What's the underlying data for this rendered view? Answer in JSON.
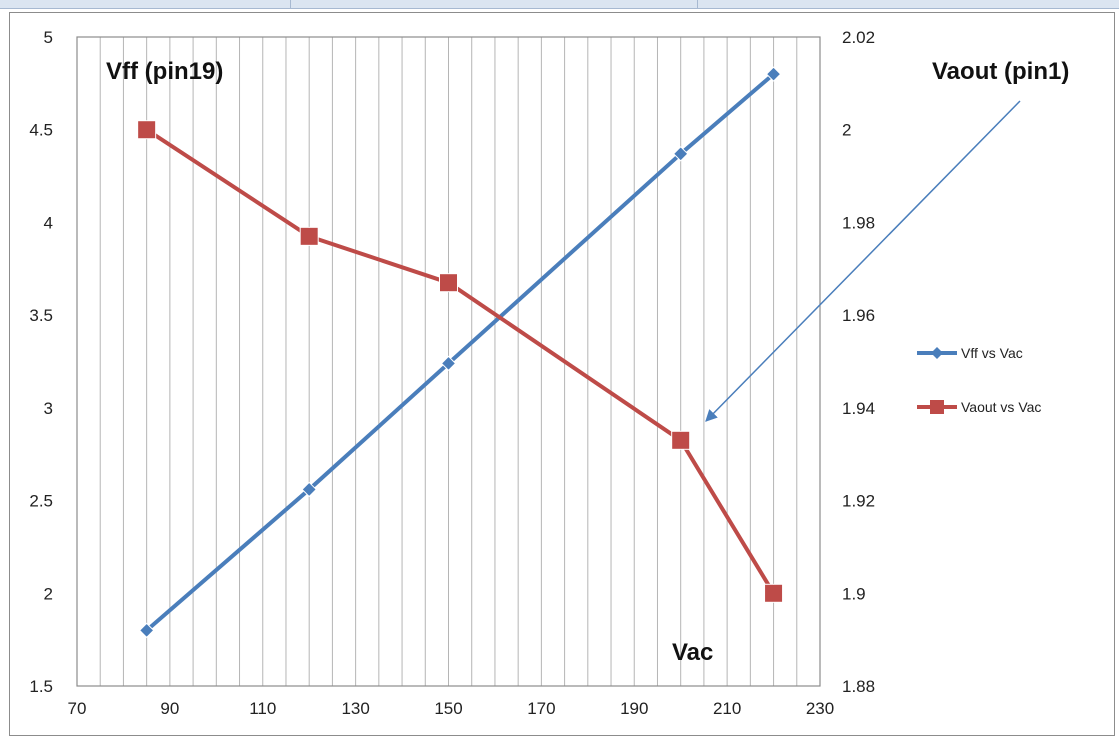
{
  "chart_data": {
    "type": "line",
    "x": [
      85,
      120,
      150,
      200,
      220
    ],
    "xlim": [
      70,
      230
    ],
    "xticks": [
      70,
      90,
      110,
      130,
      150,
      170,
      190,
      210,
      230
    ],
    "y_left": {
      "lim": [
        1.5,
        5
      ],
      "ticks": [
        "1.5",
        "2",
        "2.5",
        "3",
        "3.5",
        "4",
        "4.5",
        "5"
      ]
    },
    "y_right": {
      "lim": [
        1.88,
        2.02
      ],
      "ticks": [
        "1.88",
        "1.9",
        "1.92",
        "1.94",
        "1.96",
        "1.98",
        "2",
        "2.02"
      ]
    },
    "series": [
      {
        "name": "Vff vs Vac",
        "axis": "left",
        "marker": "diamond",
        "color": "#4a7ebb",
        "values": [
          1.8,
          2.56,
          3.24,
          4.37,
          4.8
        ]
      },
      {
        "name": "Vaout vs Vac",
        "axis": "right",
        "marker": "square",
        "color": "#be4b48",
        "values": [
          2.0,
          1.977,
          1.967,
          1.933,
          1.9
        ]
      }
    ],
    "annotations": {
      "left": "Vff (pin19)",
      "right": "Vaout  (pin1)",
      "x": "Vac"
    },
    "grid": "vertical",
    "legend": "right"
  }
}
